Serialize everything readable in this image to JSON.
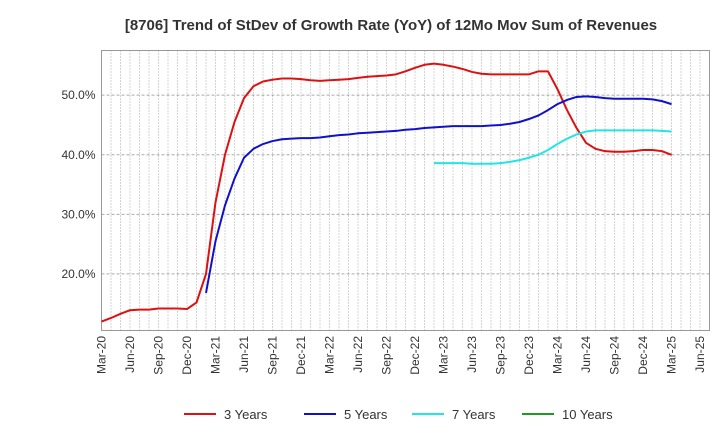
{
  "chart_data": {
    "type": "line",
    "title": "[8706]  Trend of StDev of Growth Rate (YoY) of 12Mo Mov Sum of Revenues",
    "xlabel": "",
    "ylabel": "",
    "ylim": [
      10.5,
      57.5
    ],
    "yticks": [
      20,
      30,
      40,
      50
    ],
    "ytick_labels": [
      "20.0%",
      "30.0%",
      "40.0%",
      "50.0%"
    ],
    "x_tick_labels": [
      "Mar-20",
      "Jun-20",
      "Sep-20",
      "Dec-20",
      "Mar-21",
      "Jun-21",
      "Sep-21",
      "Dec-21",
      "Mar-22",
      "Jun-22",
      "Sep-22",
      "Dec-22",
      "Mar-23",
      "Jun-23",
      "Sep-23",
      "Dec-23",
      "Mar-24",
      "Jun-24",
      "Sep-24",
      "Dec-24",
      "Mar-25",
      "Jun-25"
    ],
    "x_start": "Mar-20",
    "x_months": 64,
    "grid": true,
    "legend_position": "bottom",
    "series": [
      {
        "name": "3 Years",
        "color": "#dd1111",
        "x": [
          0,
          1,
          2,
          3,
          4,
          5,
          6,
          7,
          8,
          9,
          10,
          11,
          12,
          13,
          14,
          15,
          16,
          17,
          18,
          19,
          20,
          21,
          22,
          23,
          24,
          25,
          26,
          27,
          28,
          29,
          30,
          31,
          32,
          33,
          34,
          35,
          36,
          37,
          38,
          39,
          40,
          41,
          42,
          43,
          44,
          45,
          46,
          47,
          48,
          49,
          50,
          51,
          52,
          53,
          54,
          55,
          56,
          57,
          58,
          59,
          60
        ],
        "values": [
          12.0,
          12.6,
          13.3,
          13.9,
          14.0,
          14.0,
          14.2,
          14.2,
          14.2,
          14.1,
          15.2,
          20.0,
          32.0,
          40.0,
          45.5,
          49.5,
          51.5,
          52.3,
          52.6,
          52.8,
          52.8,
          52.7,
          52.5,
          52.4,
          52.5,
          52.6,
          52.7,
          52.9,
          53.1,
          53.2,
          53.3,
          53.5,
          54.0,
          54.6,
          55.1,
          55.3,
          55.1,
          54.8,
          54.4,
          53.9,
          53.6,
          53.5,
          53.5,
          53.5,
          53.5,
          53.5,
          54.0,
          54.0,
          51.0,
          47.5,
          44.5,
          42.0,
          41.0,
          40.6,
          40.5,
          40.5,
          40.6,
          40.8,
          40.8,
          40.6,
          40.0
        ]
      },
      {
        "name": "5 Years",
        "color": "#1111cc",
        "x": [
          11,
          12,
          13,
          14,
          15,
          16,
          17,
          18,
          19,
          20,
          21,
          22,
          23,
          24,
          25,
          26,
          27,
          28,
          29,
          30,
          31,
          32,
          33,
          34,
          35,
          36,
          37,
          38,
          39,
          40,
          41,
          42,
          43,
          44,
          45,
          46,
          47,
          48,
          49,
          50,
          51,
          52,
          53,
          54,
          55,
          56,
          57,
          58,
          59,
          60
        ],
        "values": [
          16.8,
          25.5,
          31.5,
          36.0,
          39.5,
          41.0,
          41.8,
          42.3,
          42.6,
          42.7,
          42.8,
          42.8,
          42.9,
          43.1,
          43.3,
          43.4,
          43.6,
          43.7,
          43.8,
          43.9,
          44.0,
          44.2,
          44.3,
          44.5,
          44.6,
          44.7,
          44.8,
          44.8,
          44.8,
          44.8,
          44.9,
          45.0,
          45.2,
          45.5,
          46.0,
          46.6,
          47.5,
          48.5,
          49.2,
          49.7,
          49.8,
          49.7,
          49.5,
          49.4,
          49.4,
          49.4,
          49.4,
          49.3,
          49.0,
          48.5
        ]
      },
      {
        "name": "7 Years",
        "color": "#22e5e5",
        "x": [
          35,
          36,
          37,
          38,
          39,
          40,
          41,
          42,
          43,
          44,
          45,
          46,
          47,
          48,
          49,
          50,
          51,
          52,
          53,
          54,
          55,
          56,
          57,
          58,
          59,
          60
        ],
        "values": [
          38.6,
          38.6,
          38.6,
          38.6,
          38.5,
          38.5,
          38.5,
          38.6,
          38.8,
          39.1,
          39.5,
          40.0,
          40.8,
          41.8,
          42.7,
          43.4,
          43.9,
          44.1,
          44.1,
          44.1,
          44.1,
          44.1,
          44.1,
          44.1,
          44.0,
          43.9
        ]
      },
      {
        "name": "10 Years",
        "color": "#229922",
        "x": [],
        "values": []
      }
    ]
  }
}
